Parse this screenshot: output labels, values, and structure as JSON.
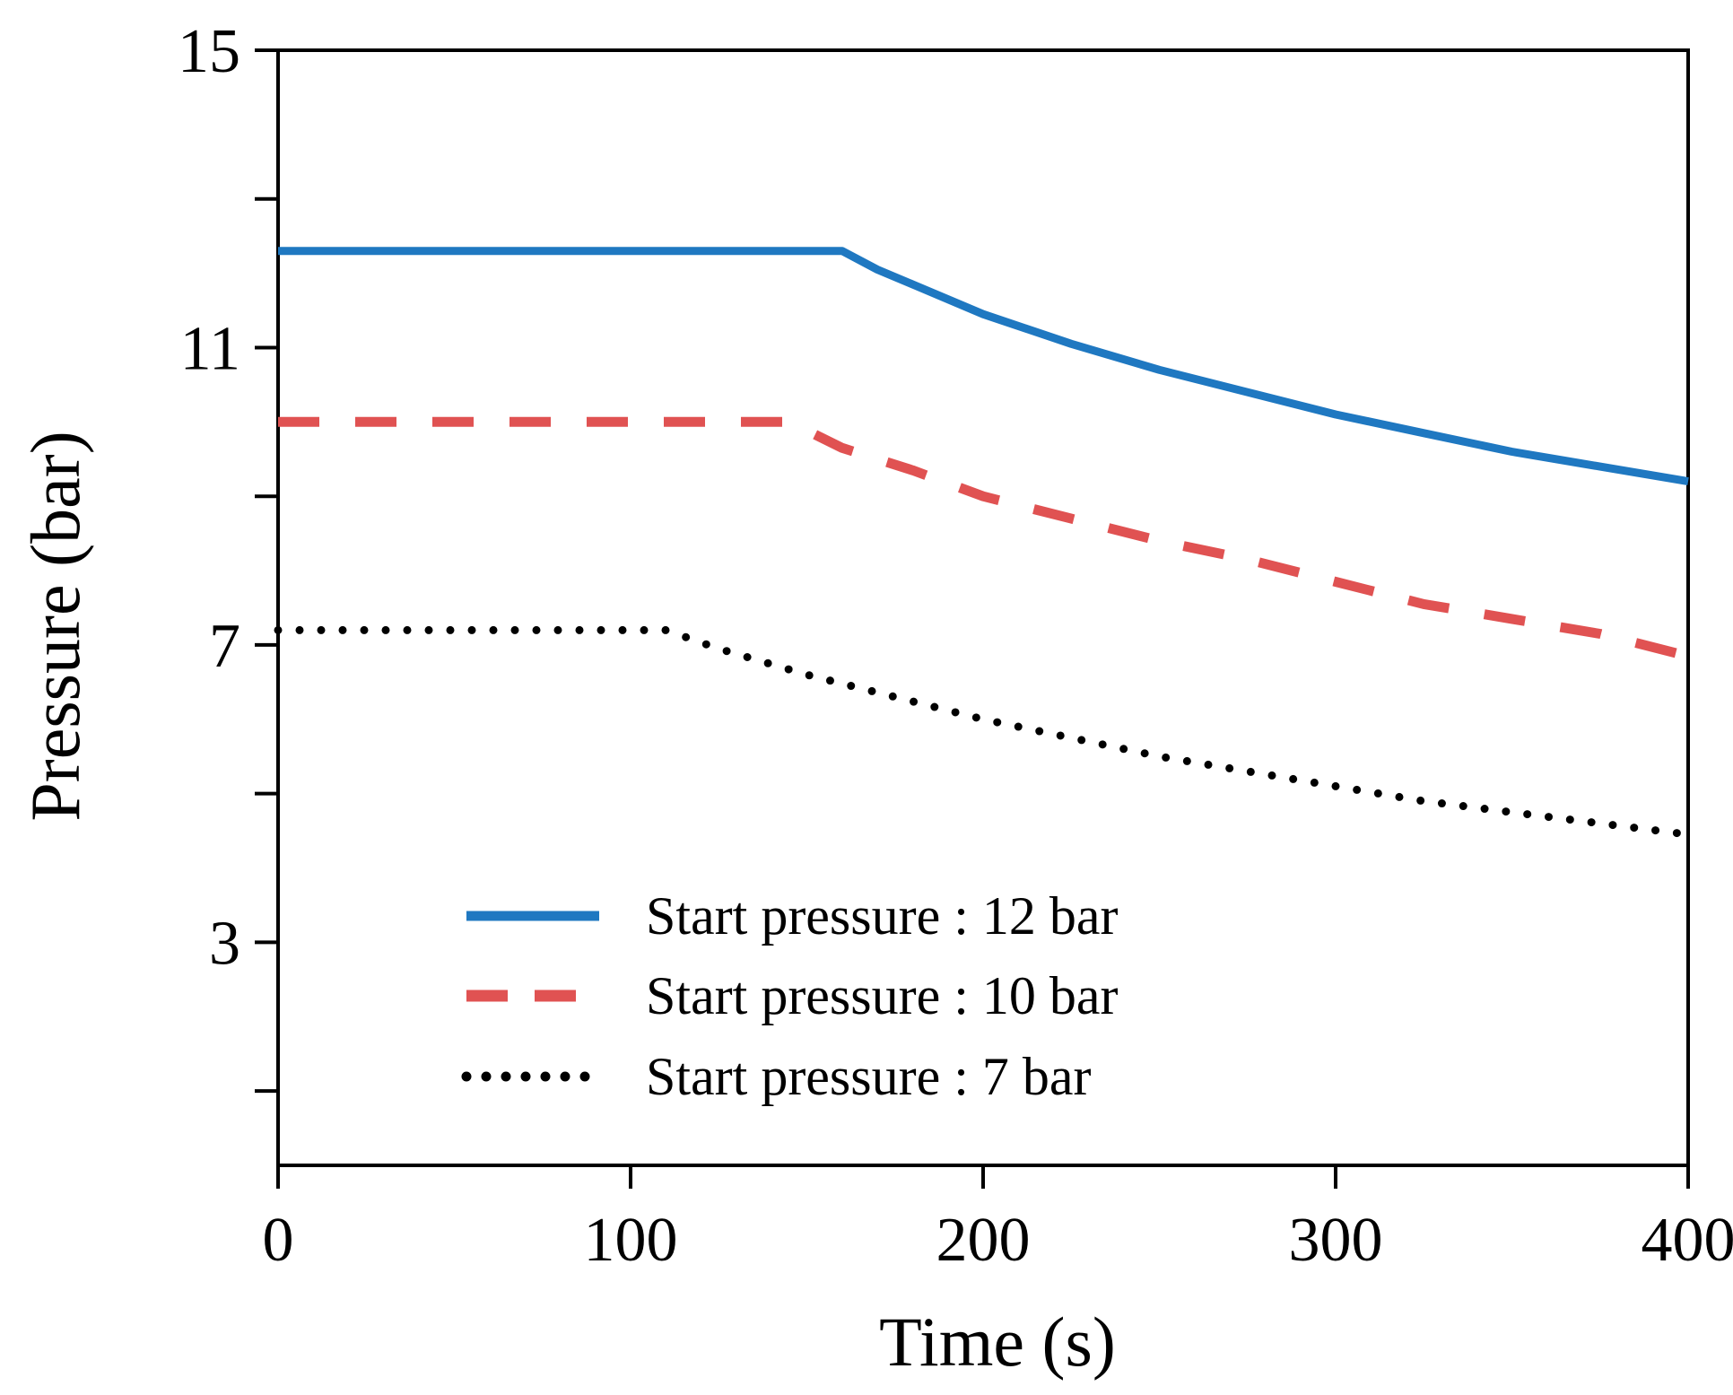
{
  "chart_data": {
    "type": "line",
    "title": "",
    "xlabel": "Time (s)",
    "ylabel": "Pressure (bar)",
    "xlim": [
      0,
      400
    ],
    "ylim": [
      0,
      15
    ],
    "x_ticks": [
      0,
      100,
      200,
      300,
      400
    ],
    "x_tick_labels": [
      "0",
      "100",
      "200",
      "300",
      "400"
    ],
    "y_ticks": [
      1,
      3,
      5,
      7,
      9,
      11,
      13,
      15
    ],
    "y_tick_labels": [
      {
        "value": 3,
        "label": "3"
      },
      {
        "value": 7,
        "label": "7"
      },
      {
        "value": 11,
        "label": "11"
      },
      {
        "value": 15,
        "label": "15"
      }
    ],
    "grid": false,
    "legend_position": "bottom-center",
    "series": [
      {
        "name": "Start pressure : 12 bar",
        "color": "#1f78c1",
        "style": "solid",
        "x": [
          0,
          100,
          160,
          170,
          180,
          200,
          225,
          250,
          275,
          300,
          325,
          350,
          375,
          400
        ],
        "y": [
          12.3,
          12.3,
          12.3,
          12.05,
          11.85,
          11.45,
          11.05,
          10.7,
          10.4,
          10.1,
          9.85,
          9.6,
          9.4,
          9.2
        ]
      },
      {
        "name": "Start pressure : 10 bar",
        "color": "#e05252",
        "style": "dashed",
        "x": [
          0,
          50,
          100,
          145,
          160,
          180,
          200,
          225,
          250,
          275,
          300,
          325,
          350,
          375,
          400
        ],
        "y": [
          10,
          10,
          10,
          10,
          9.65,
          9.35,
          9.0,
          8.7,
          8.4,
          8.15,
          7.85,
          7.55,
          7.35,
          7.15,
          6.85
        ]
      },
      {
        "name": "Start pressure : 7 bar",
        "color": "#000000",
        "style": "dotted",
        "x": [
          0,
          50,
          100,
          110,
          125,
          150,
          175,
          200,
          225,
          250,
          275,
          300,
          325,
          350,
          375,
          400
        ],
        "y": [
          7.2,
          7.2,
          7.2,
          7.2,
          6.95,
          6.6,
          6.3,
          6.0,
          5.75,
          5.5,
          5.3,
          5.1,
          4.9,
          4.75,
          4.6,
          4.45
        ]
      }
    ]
  }
}
